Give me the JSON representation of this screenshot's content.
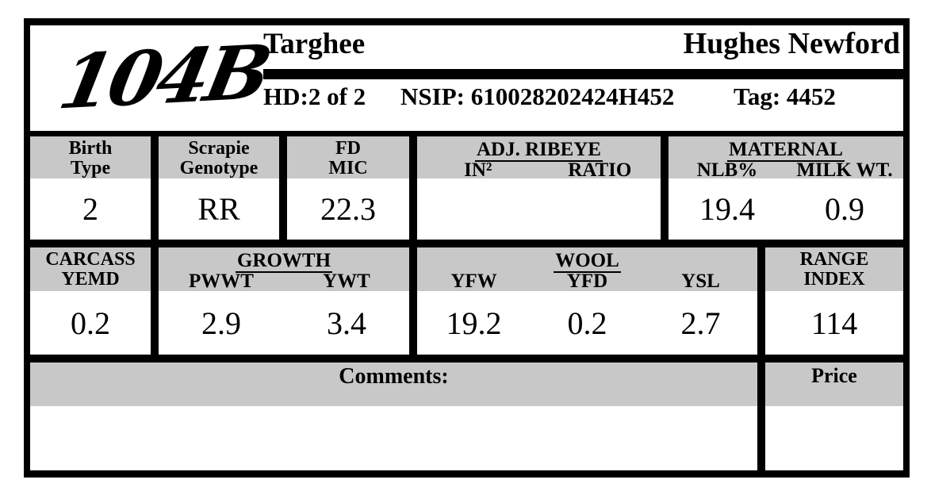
{
  "header": {
    "logo": "104B",
    "breed": "Targhee",
    "owner": "Hughes Newford",
    "hd": "HD:2 of 2",
    "nsip": "NSIP: 610028202424H452",
    "tag": "Tag: 4452"
  },
  "row1": {
    "birth_type": {
      "label": "Birth\nType",
      "value": "2"
    },
    "scrapie": {
      "label": "Scrapie\nGenotype",
      "value": "RR"
    },
    "fd_mic": {
      "label": "FD\nMIC",
      "value": "22.3"
    },
    "adj_ribeye": {
      "title": "ADJ. RIBEYE",
      "cols": [
        {
          "label": "IN²",
          "value": ""
        },
        {
          "label": "RATIO",
          "value": ""
        }
      ]
    },
    "maternal": {
      "title": "MATERNAL",
      "cols": [
        {
          "label": "NLB%",
          "value": "19.4"
        },
        {
          "label": "MILK WT.",
          "value": "0.9"
        }
      ]
    }
  },
  "row2": {
    "carcass": {
      "label": "CARCASS\nYEMD",
      "value": "0.2"
    },
    "growth": {
      "title": "GROWTH",
      "cols": [
        {
          "label": "PWWT",
          "value": "2.9"
        },
        {
          "label": "YWT",
          "value": "3.4"
        }
      ]
    },
    "wool": {
      "title": "WOOL",
      "cols": [
        {
          "label": "YFW",
          "value": "19.2"
        },
        {
          "label": "YFD",
          "value": "0.2"
        },
        {
          "label": "YSL",
          "value": "2.7"
        }
      ]
    },
    "range_index": {
      "label": "RANGE\nINDEX",
      "value": "114"
    }
  },
  "footer": {
    "comments_label": "Comments:",
    "comments_value": "",
    "price_label": "Price",
    "price_value": ""
  },
  "colors": {
    "band_gray": "#c8c8c8",
    "border_black": "#000000"
  }
}
